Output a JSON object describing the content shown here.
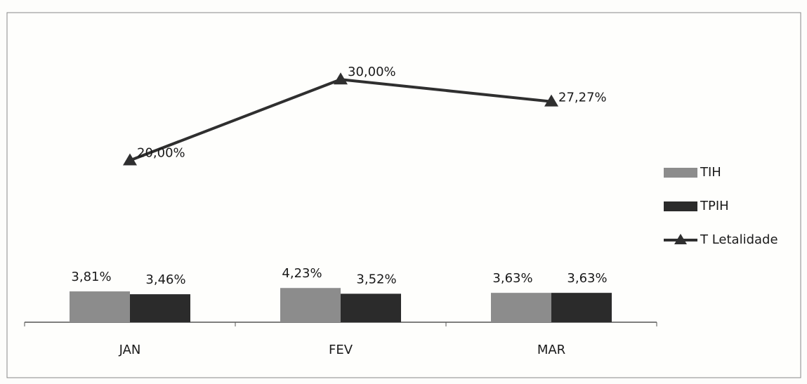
{
  "chart_data": {
    "type": "bar-line",
    "categories": [
      "JAN",
      "FEV",
      "MAR"
    ],
    "series": [
      {
        "name": "TIH",
        "type": "bar",
        "color": "#8c8c8c",
        "values": [
          3.81,
          4.23,
          3.63
        ],
        "value_labels": [
          "3,81%",
          "4,23%",
          "3,63%"
        ]
      },
      {
        "name": "TPIH",
        "type": "bar",
        "color": "#2b2b2b",
        "values": [
          3.46,
          3.52,
          3.63
        ],
        "value_labels": [
          "3,46%",
          "3,52%",
          "3,63%"
        ]
      },
      {
        "name": "T Letalidade",
        "type": "line",
        "color": "#2f2f2f",
        "values": [
          20.0,
          30.0,
          27.27
        ],
        "value_labels": [
          "20,00%",
          "30,00%",
          "27,27%"
        ]
      }
    ],
    "ylim": [
      0,
      38
    ],
    "legend": "right"
  }
}
